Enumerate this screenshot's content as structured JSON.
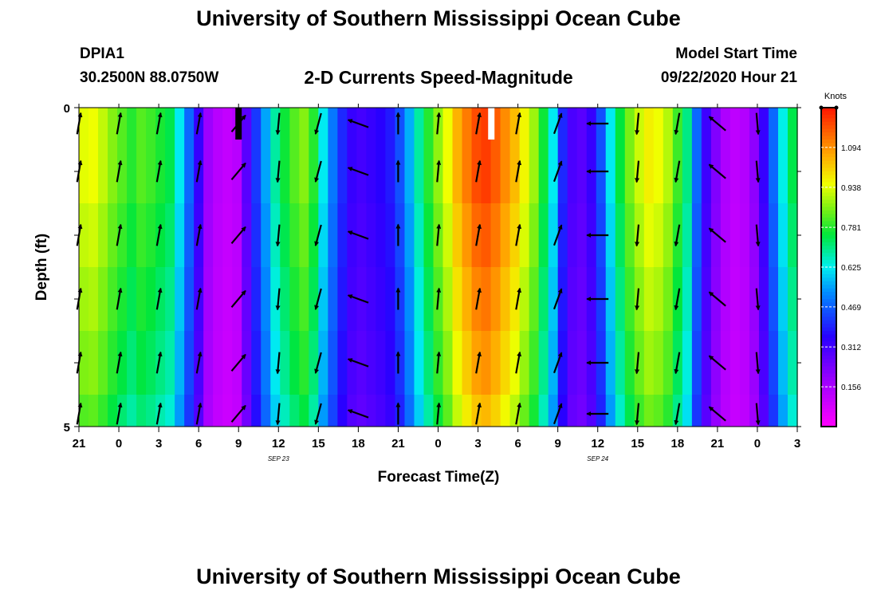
{
  "page": {
    "title_top": "University of Southern Mississippi Ocean Cube",
    "title_bottom": "University of Southern Mississippi Ocean Cube",
    "station_id": "DPIA1",
    "station_coords": "30.2500N 88.0750W",
    "plot_title": "2-D Currents Speed-Magnitude",
    "model_start_label": "Model Start Time",
    "model_start_value": "09/22/2020 Hour 21"
  },
  "chart_data": {
    "type": "heatmap",
    "title": "2-D Currents Speed-Magnitude",
    "xlabel": "Forecast Time(Z)",
    "ylabel": "Depth (ft)",
    "colorbar_label": "Knots",
    "colorbar_ticks": [
      "1.094",
      "0.938",
      "0.781",
      "0.625",
      "0.469",
      "0.312",
      "0.156"
    ],
    "colorbar_tick_values": [
      1.094,
      0.938,
      0.781,
      0.625,
      0.469,
      0.312,
      0.156
    ],
    "colorbar_range": [
      0.0,
      1.25
    ],
    "x_ticks": [
      "21",
      "0",
      "3",
      "6",
      "9",
      "12",
      "15",
      "18",
      "21",
      "0",
      "3",
      "6",
      "9",
      "12",
      "15",
      "18",
      "21",
      "0",
      "3"
    ],
    "x_range_hours": [
      0,
      54
    ],
    "date_labels": [
      {
        "text": "SEP 23",
        "hour": 15
      },
      {
        "text": "SEP 24",
        "hour": 39
      }
    ],
    "y_ticks": [
      "0",
      "5"
    ],
    "y_range": [
      0,
      5
    ],
    "depth_bands": [
      0,
      1,
      2,
      3,
      4,
      5
    ],
    "speed_hourly_knots": [
      0.94,
      0.95,
      0.91,
      0.86,
      0.82,
      0.78,
      0.82,
      0.8,
      0.77,
      0.74,
      0.62,
      0.48,
      0.33,
      0.18,
      0.13,
      0.11,
      0.13,
      0.28,
      0.42,
      0.55,
      0.68,
      0.76,
      0.82,
      0.86,
      0.78,
      0.62,
      0.5,
      0.4,
      0.33,
      0.31,
      0.33,
      0.35,
      0.38,
      0.45,
      0.56,
      0.68,
      0.78,
      0.87,
      0.95,
      1.05,
      1.12,
      1.18,
      1.2,
      1.16,
      1.1,
      1.04,
      0.96,
      0.88,
      0.76,
      0.62,
      0.4,
      0.3,
      0.28,
      0.33,
      0.45,
      0.62,
      0.75,
      0.85,
      0.92,
      0.97,
      0.95,
      0.9,
      0.8,
      0.7,
      0.48,
      0.32,
      0.22,
      0.15,
      0.12,
      0.14,
      0.2,
      0.33,
      0.48,
      0.63,
      0.74,
      0.8,
      0.82
    ],
    "depth_factor": [
      1.0,
      1.0,
      0.97,
      0.94,
      0.91,
      0.87
    ],
    "hour_step": 0.72,
    "no_data_hours": [
      {
        "hour": 12,
        "color": "#000000"
      },
      {
        "hour": 31,
        "color": "#ffffff"
      }
    ],
    "vectors": [
      {
        "hour": 0,
        "depth": 0.8,
        "dir_deg": 10,
        "len": 0.9
      },
      {
        "hour": 3,
        "depth": 0.8,
        "dir_deg": 10,
        "len": 0.9
      },
      {
        "hour": 6,
        "depth": 0.8,
        "dir_deg": 10,
        "len": 0.9
      },
      {
        "hour": 9,
        "depth": 0.8,
        "dir_deg": 10,
        "len": 0.9
      },
      {
        "hour": 12,
        "depth": 0.8,
        "dir_deg": 40,
        "len": 0.9
      },
      {
        "hour": 15,
        "depth": 0.3,
        "dir_deg": 185,
        "len": 0.9
      },
      {
        "hour": 18,
        "depth": 0.3,
        "dir_deg": 195,
        "len": 0.9
      },
      {
        "hour": 21,
        "depth": 1.0,
        "dir_deg": 290,
        "len": 0.9
      },
      {
        "hour": 24,
        "depth": 0.8,
        "dir_deg": 0,
        "len": 0.9
      },
      {
        "hour": 27,
        "depth": 0.8,
        "dir_deg": 5,
        "len": 0.9
      },
      {
        "hour": 30,
        "depth": 0.8,
        "dir_deg": 10,
        "len": 0.9
      },
      {
        "hour": 33,
        "depth": 0.8,
        "dir_deg": 10,
        "len": 0.9
      },
      {
        "hour": 36,
        "depth": 0.8,
        "dir_deg": 20,
        "len": 0.9
      },
      {
        "hour": 39,
        "depth": 1.0,
        "dir_deg": 270,
        "len": 0.9
      },
      {
        "hour": 42,
        "depth": 0.3,
        "dir_deg": 185,
        "len": 0.9
      },
      {
        "hour": 45,
        "depth": 0.3,
        "dir_deg": 190,
        "len": 0.9
      },
      {
        "hour": 48,
        "depth": 1.0,
        "dir_deg": 310,
        "len": 0.9
      },
      {
        "hour": 51,
        "depth": 0.8,
        "dir_deg": 175,
        "len": 0.9
      }
    ]
  }
}
